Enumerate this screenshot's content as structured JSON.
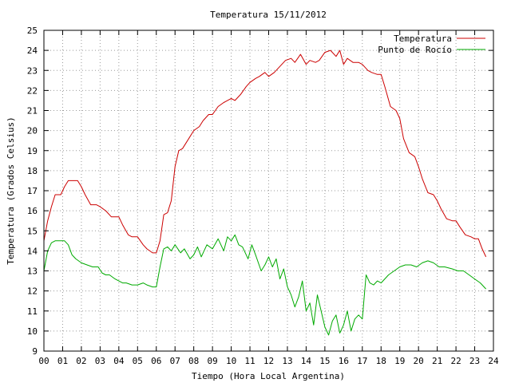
{
  "chart_data": {
    "type": "line",
    "title": "Temperatura 15/11/2012",
    "xlabel": "Tiempo (Hora Local Argentina)",
    "ylabel": "Temperatura (Grados Celsius)",
    "xlim": [
      0,
      24
    ],
    "ylim": [
      9,
      25
    ],
    "grid": true,
    "legend_position": "top-right",
    "x_ticks": [
      "00",
      "01",
      "02",
      "03",
      "04",
      "05",
      "06",
      "07",
      "08",
      "09",
      "10",
      "11",
      "12",
      "13",
      "14",
      "15",
      "16",
      "17",
      "18",
      "19",
      "20",
      "21",
      "22",
      "23",
      "24"
    ],
    "y_ticks": [
      "9",
      "10",
      "11",
      "12",
      "13",
      "14",
      "15",
      "16",
      "17",
      "18",
      "19",
      "20",
      "21",
      "22",
      "23",
      "24",
      "25"
    ],
    "series": [
      {
        "name": "Temperatura",
        "color": "#cc0000",
        "x": [
          0.0,
          0.2,
          0.4,
          0.6,
          0.9,
          1.1,
          1.3,
          1.6,
          1.8,
          2.0,
          2.2,
          2.5,
          2.8,
          3.0,
          3.3,
          3.6,
          4.0,
          4.2,
          4.5,
          4.7,
          5.0,
          5.3,
          5.5,
          5.8,
          6.0,
          6.2,
          6.4,
          6.6,
          6.8,
          7.0,
          7.2,
          7.4,
          7.6,
          8.0,
          8.3,
          8.5,
          8.8,
          9.0,
          9.3,
          9.6,
          10.0,
          10.2,
          10.5,
          10.8,
          11.0,
          11.3,
          11.5,
          11.8,
          12.0,
          12.3,
          12.6,
          12.9,
          13.2,
          13.4,
          13.7,
          14.0,
          14.2,
          14.5,
          14.7,
          15.0,
          15.3,
          15.6,
          15.8,
          16.0,
          16.2,
          16.5,
          16.8,
          17.0,
          17.3,
          17.5,
          17.8,
          18.0,
          18.2,
          18.5,
          18.8,
          19.0,
          19.2,
          19.5,
          19.8,
          20.0,
          20.2,
          20.5,
          20.8,
          21.0,
          21.2,
          21.5,
          21.8,
          22.0,
          22.2,
          22.5,
          22.8,
          23.0,
          23.2,
          23.4,
          23.6
        ],
        "values": [
          14.5,
          15.5,
          16.2,
          16.8,
          16.8,
          17.2,
          17.5,
          17.5,
          17.5,
          17.2,
          16.8,
          16.3,
          16.3,
          16.2,
          16.0,
          15.7,
          15.7,
          15.3,
          14.8,
          14.7,
          14.7,
          14.3,
          14.1,
          13.9,
          13.9,
          14.5,
          15.8,
          15.9,
          16.5,
          18.2,
          19.0,
          19.1,
          19.4,
          20.0,
          20.2,
          20.5,
          20.8,
          20.8,
          21.2,
          21.4,
          21.6,
          21.5,
          21.8,
          22.2,
          22.4,
          22.6,
          22.7,
          22.9,
          22.7,
          22.9,
          23.2,
          23.5,
          23.6,
          23.4,
          23.8,
          23.3,
          23.5,
          23.4,
          23.5,
          23.9,
          24.0,
          23.7,
          24.0,
          23.3,
          23.6,
          23.4,
          23.4,
          23.3,
          23.0,
          22.9,
          22.8,
          22.8,
          22.2,
          21.2,
          21.0,
          20.6,
          19.6,
          18.9,
          18.7,
          18.2,
          17.6,
          16.9,
          16.8,
          16.5,
          16.1,
          15.6,
          15.5,
          15.5,
          15.2,
          14.8,
          14.7,
          14.6,
          14.6,
          14.1,
          13.7
        ]
      },
      {
        "name": "Punto de Rocío",
        "color": "#00aa00",
        "x": [
          0.0,
          0.2,
          0.4,
          0.6,
          0.9,
          1.1,
          1.3,
          1.5,
          1.7,
          2.0,
          2.3,
          2.6,
          2.9,
          3.1,
          3.3,
          3.5,
          3.8,
          4.0,
          4.2,
          4.4,
          4.7,
          5.0,
          5.3,
          5.5,
          5.8,
          6.0,
          6.2,
          6.4,
          6.6,
          6.8,
          7.0,
          7.3,
          7.5,
          7.8,
          8.0,
          8.2,
          8.4,
          8.7,
          9.0,
          9.3,
          9.6,
          9.8,
          10.0,
          10.2,
          10.4,
          10.6,
          10.9,
          11.1,
          11.3,
          11.6,
          11.8,
          12.0,
          12.2,
          12.4,
          12.6,
          12.8,
          13.0,
          13.2,
          13.4,
          13.6,
          13.8,
          14.0,
          14.2,
          14.4,
          14.6,
          14.8,
          15.0,
          15.2,
          15.4,
          15.6,
          15.8,
          16.0,
          16.2,
          16.4,
          16.6,
          16.8,
          17.0,
          17.2,
          17.4,
          17.6,
          17.8,
          18.0,
          18.2,
          18.4,
          18.7,
          19.0,
          19.3,
          19.6,
          19.9,
          20.2,
          20.5,
          20.8,
          21.1,
          21.4,
          21.8,
          22.1,
          22.4,
          22.7,
          23.0,
          23.3,
          23.6
        ],
        "values": [
          13.0,
          14.0,
          14.4,
          14.5,
          14.5,
          14.5,
          14.3,
          13.8,
          13.6,
          13.4,
          13.3,
          13.2,
          13.2,
          12.9,
          12.8,
          12.8,
          12.6,
          12.5,
          12.4,
          12.4,
          12.3,
          12.3,
          12.4,
          12.3,
          12.2,
          12.2,
          13.2,
          14.1,
          14.2,
          14.0,
          14.3,
          13.9,
          14.1,
          13.6,
          13.8,
          14.2,
          13.7,
          14.3,
          14.1,
          14.6,
          14.0,
          14.7,
          14.5,
          14.8,
          14.3,
          14.2,
          13.6,
          14.3,
          13.8,
          13.0,
          13.3,
          13.7,
          13.2,
          13.6,
          12.6,
          13.1,
          12.2,
          11.8,
          11.2,
          11.7,
          12.5,
          11.0,
          11.4,
          10.3,
          11.8,
          11.0,
          10.2,
          9.8,
          10.5,
          10.8,
          9.9,
          10.3,
          11.0,
          10.0,
          10.6,
          10.8,
          10.6,
          12.8,
          12.4,
          12.3,
          12.5,
          12.4,
          12.6,
          12.8,
          13.0,
          13.2,
          13.3,
          13.3,
          13.2,
          13.4,
          13.5,
          13.4,
          13.2,
          13.2,
          13.1,
          13.0,
          13.0,
          12.8,
          12.6,
          12.4,
          12.1
        ]
      }
    ]
  }
}
